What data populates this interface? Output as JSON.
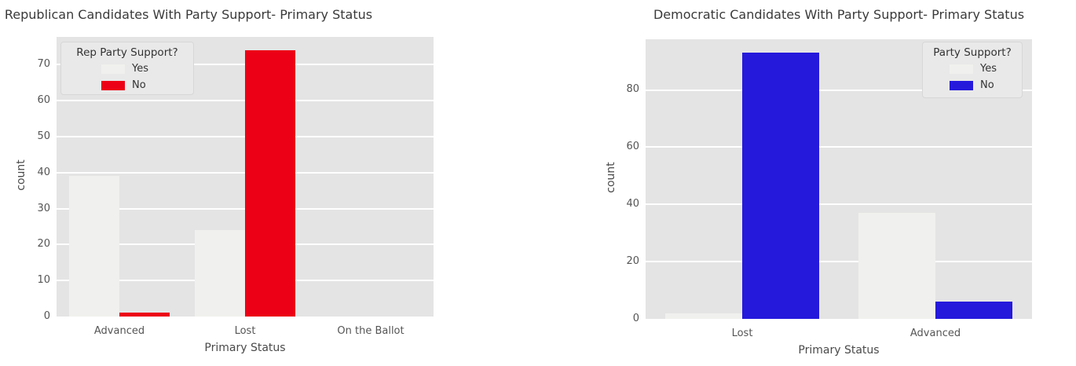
{
  "figure": {
    "background": "#ffffff",
    "plot_background": "#e4e4e4",
    "gridline_color": "#ffffff"
  },
  "chart_data": [
    {
      "type": "bar",
      "title": "Republican Candidates With Party Support- Primary Status",
      "xlabel": "Primary Status",
      "ylabel": "count",
      "categories": [
        "Advanced",
        "Lost",
        "On the Ballot"
      ],
      "series": [
        {
          "name": "Yes",
          "color": "#f0f0ee",
          "values": [
            39,
            24,
            0
          ]
        },
        {
          "name": "No",
          "color": "#ec0016",
          "values": [
            1,
            74,
            0
          ]
        }
      ],
      "ylim": [
        0,
        77.7
      ],
      "yticks": [
        0,
        10,
        20,
        30,
        40,
        50,
        60,
        70
      ],
      "grid": true,
      "legend": {
        "title": "Rep Party Support?",
        "position": "upper left",
        "entries": [
          "Yes",
          "No"
        ]
      }
    },
    {
      "type": "bar",
      "title": "Democratic Candidates With Party Support- Primary Status",
      "xlabel": "Primary Status",
      "ylabel": "count",
      "categories": [
        "Lost",
        "Advanced"
      ],
      "series": [
        {
          "name": "Yes",
          "color": "#f0f0ee",
          "values": [
            2,
            37
          ]
        },
        {
          "name": "No",
          "color": "#2519dc",
          "values": [
            93,
            6
          ]
        }
      ],
      "ylim": [
        0,
        97.7
      ],
      "yticks": [
        0,
        20,
        40,
        60,
        80
      ],
      "grid": true,
      "legend": {
        "title": "Party Support?",
        "position": "upper right",
        "entries": [
          "Yes",
          "No"
        ]
      }
    }
  ]
}
